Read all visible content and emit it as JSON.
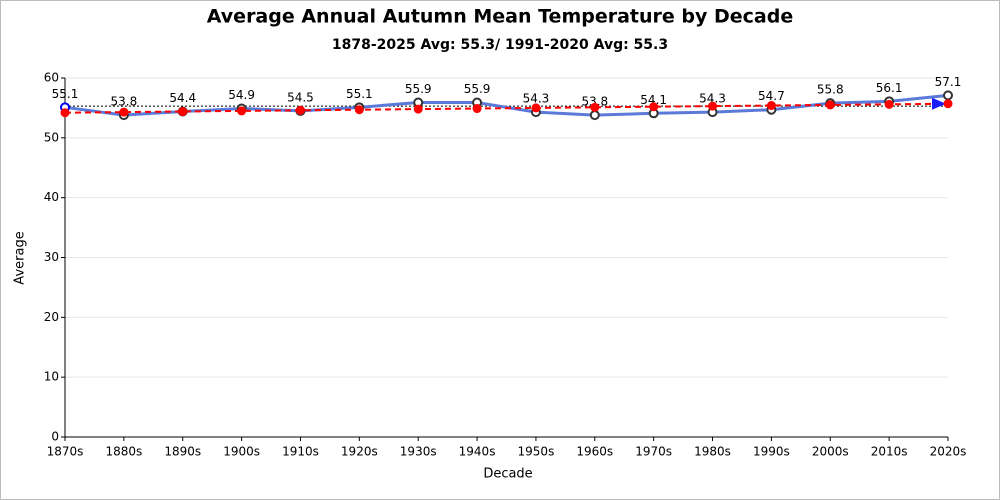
{
  "chart_data": {
    "type": "line",
    "title": "Average Annual Autumn Mean Temperature by Decade",
    "subtitle": "1878-2025 Avg: 55.3/ 1991-2020 Avg: 55.3",
    "x_label": "Decade",
    "y_label": "Average",
    "categories": [
      "1870s",
      "1880s",
      "1890s",
      "1900s",
      "1910s",
      "1920s",
      "1930s",
      "1940s",
      "1950s",
      "1960s",
      "1970s",
      "1980s",
      "1990s",
      "2000s",
      "2010s",
      "2020s"
    ],
    "series": [
      {
        "color": "#5b79d9",
        "values": [
          55.1,
          53.8,
          54.4,
          54.9,
          54.5,
          55.1,
          55.9,
          55.9,
          54.3,
          53.8,
          54.1,
          54.3,
          54.7,
          55.8,
          56.1,
          57.1
        ],
        "labels": true
      },
      {
        "color": "#ff0000",
        "dashed": true,
        "values": [
          54.2,
          54.3,
          54.4,
          54.5,
          54.6,
          54.7,
          54.8,
          54.9,
          55.0,
          55.1,
          55.2,
          55.3,
          55.4,
          55.5,
          55.6,
          55.7
        ]
      }
    ],
    "reference_line": {
      "value": 55.3,
      "color": "#000000"
    },
    "ylim": [
      0,
      60
    ],
    "yticks": [
      0,
      10,
      20,
      30,
      40,
      50,
      60
    ],
    "grid": true
  }
}
